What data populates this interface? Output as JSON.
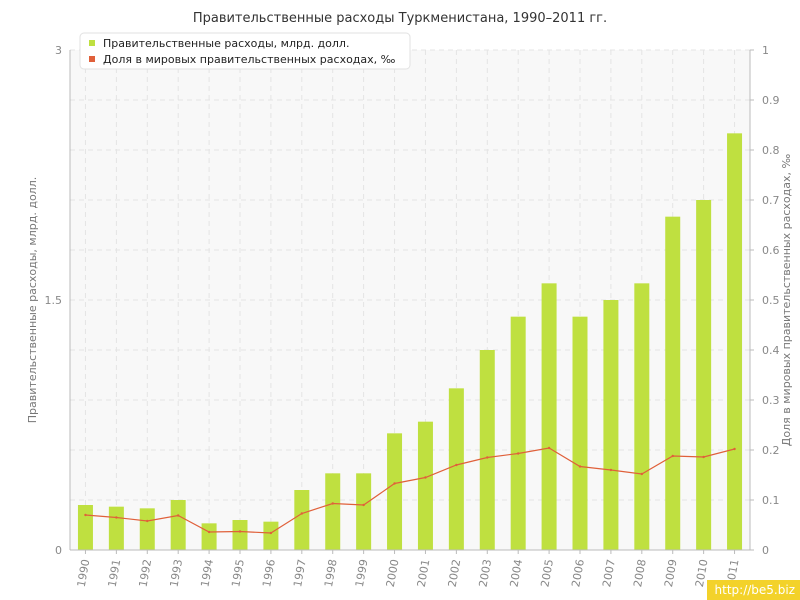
{
  "chart_data": {
    "type": "bar",
    "title": "Правительственные расходы Туркменистана, 1990–2011 гг.",
    "xlabel": "",
    "ylabel": "Правительственные расходы, млрд. долл.",
    "y2label": "Доля в мировых правительственных расходах, ‰",
    "categories": [
      "1990",
      "1991",
      "1992",
      "1993",
      "1994",
      "1995",
      "1996",
      "1997",
      "1998",
      "1999",
      "2000",
      "2001",
      "2002",
      "2003",
      "2004",
      "2005",
      "2006",
      "2007",
      "2008",
      "2009",
      "2010",
      "2011"
    ],
    "ylim": [
      0,
      3
    ],
    "y_ticks": [
      "0",
      "1.5",
      "3"
    ],
    "y2lim": [
      0,
      1
    ],
    "y2_ticks": [
      "0",
      "0.1",
      "0.2",
      "0.3",
      "0.4",
      "0.5",
      "0.6",
      "0.7",
      "0.8",
      "0.9",
      "1"
    ],
    "grid": true,
    "legend_position": "top-left",
    "series": [
      {
        "name": "Правительственные расходы, млрд. долл.",
        "type": "bar",
        "axis": "left",
        "color": "#bfe040",
        "values": [
          0.27,
          0.26,
          0.25,
          0.3,
          0.16,
          0.18,
          0.17,
          0.36,
          0.46,
          0.46,
          0.7,
          0.77,
          0.97,
          1.2,
          1.4,
          1.6,
          1.4,
          1.5,
          1.6,
          2.0,
          2.1,
          2.5
        ]
      },
      {
        "name": "Доля в мировых правительственных расходах, ‰",
        "type": "line",
        "axis": "right",
        "color": "#e0603a",
        "values": [
          0.07,
          0.065,
          0.058,
          0.069,
          0.036,
          0.037,
          0.034,
          0.073,
          0.093,
          0.09,
          0.133,
          0.145,
          0.17,
          0.185,
          0.193,
          0.204,
          0.167,
          0.16,
          0.152,
          0.188,
          0.186,
          0.202
        ]
      }
    ]
  },
  "watermark": "http://be5.biz"
}
